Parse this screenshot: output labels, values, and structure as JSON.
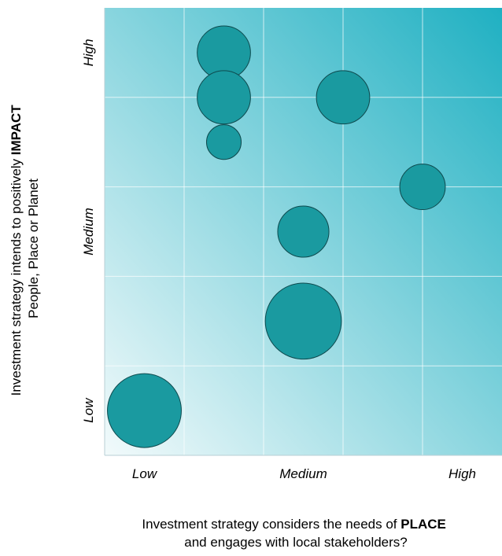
{
  "chart_data": {
    "type": "scatter",
    "subtype": "bubble",
    "xlabel_lines": [
      {
        "text": "Investment strategy considers the needs of ",
        "emphasis": "PLACE"
      },
      {
        "text": "and engages with local stakeholders?",
        "emphasis": ""
      }
    ],
    "ylabel_lines": [
      {
        "text": "Investment strategy intends to positively ",
        "emphasis": "IMPACT"
      },
      {
        "text": "People, Place or Planet",
        "emphasis": ""
      }
    ],
    "x_ticks": [
      "Low",
      "Medium",
      "High"
    ],
    "y_ticks": [
      "Low",
      "Medium",
      "High"
    ],
    "xlim": [
      0,
      5
    ],
    "ylim": [
      0,
      5
    ],
    "grid": true,
    "bubble_color": "#1a9aa0",
    "bubble_edge": "#0e4a4e",
    "gradient_colors": [
      "#f2fafb",
      "#1fb0c2"
    ],
    "bubbles": [
      {
        "x": 0.5,
        "y": 0.5,
        "size": 5.0
      },
      {
        "x": 2.5,
        "y": 1.5,
        "size": 5.3
      },
      {
        "x": 2.5,
        "y": 2.5,
        "size": 2.4
      },
      {
        "x": 1.5,
        "y": 4.5,
        "size": 2.6
      },
      {
        "x": 1.5,
        "y": 4.0,
        "size": 2.6
      },
      {
        "x": 1.5,
        "y": 3.5,
        "size": 1.1
      },
      {
        "x": 3.0,
        "y": 4.0,
        "size": 2.6
      },
      {
        "x": 4.0,
        "y": 3.0,
        "size": 1.9
      }
    ]
  }
}
